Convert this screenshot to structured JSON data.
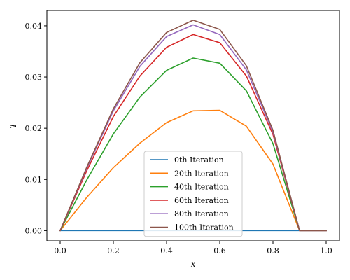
{
  "chart_data": {
    "type": "line",
    "title": "",
    "xlabel": "x",
    "ylabel": "T",
    "xlim": [
      -0.05,
      1.05
    ],
    "ylim": [
      -0.002,
      0.043
    ],
    "xticks": [
      0.0,
      0.2,
      0.4,
      0.6,
      0.8,
      1.0
    ],
    "xtick_labels": [
      "0.0",
      "0.2",
      "0.4",
      "0.6",
      "0.8",
      "1.0"
    ],
    "yticks": [
      0.0,
      0.01,
      0.02,
      0.03,
      0.04
    ],
    "ytick_labels": [
      "0.00",
      "0.01",
      "0.02",
      "0.03",
      "0.04"
    ],
    "grid": false,
    "legend_position": "lower center",
    "x": [
      0.0,
      0.1,
      0.2,
      0.3,
      0.4,
      0.5,
      0.6,
      0.7,
      0.8,
      0.9,
      1.0
    ],
    "series": [
      {
        "name": "0th Iteration",
        "color": "#1f77b4",
        "values": [
          0,
          0,
          0,
          0,
          0,
          0,
          0,
          0,
          0,
          0,
          0
        ]
      },
      {
        "name": "20th Iteration",
        "color": "#ff7f0e",
        "values": [
          0,
          0.0065,
          0.0123,
          0.0171,
          0.0211,
          0.0234,
          0.0235,
          0.0204,
          0.013,
          0,
          0
        ]
      },
      {
        "name": "40th Iteration",
        "color": "#2ca02c",
        "values": [
          0,
          0.0099,
          0.0189,
          0.0261,
          0.0313,
          0.0337,
          0.0327,
          0.0273,
          0.017,
          0,
          0
        ]
      },
      {
        "name": "60th Iteration",
        "color": "#d62728",
        "values": [
          0,
          0.0117,
          0.0223,
          0.0302,
          0.0358,
          0.0383,
          0.0367,
          0.0302,
          0.0188,
          0,
          0
        ]
      },
      {
        "name": "80th Iteration",
        "color": "#9467bd",
        "values": [
          0,
          0.0122,
          0.0234,
          0.0321,
          0.0379,
          0.0402,
          0.0383,
          0.0314,
          0.0193,
          0,
          0
        ]
      },
      {
        "name": "100th Iteration",
        "color": "#8c564b",
        "values": [
          0,
          0.0124,
          0.0238,
          0.0328,
          0.0387,
          0.0411,
          0.0393,
          0.0322,
          0.0196,
          0,
          0
        ]
      }
    ]
  }
}
